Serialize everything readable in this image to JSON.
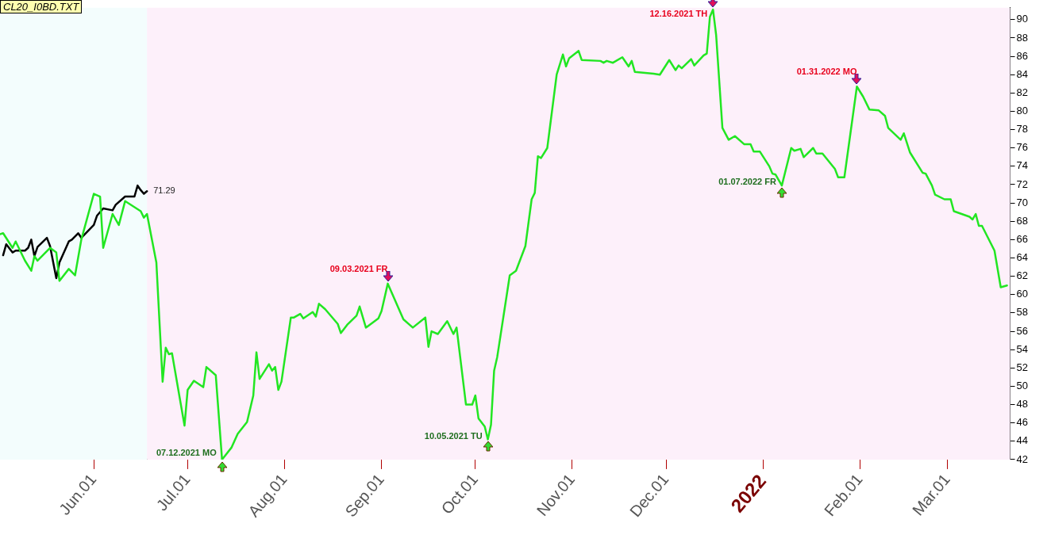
{
  "chart_data": {
    "type": "line",
    "title": "CL20_I0BD.TXT",
    "xlim": [
      "2021-05-02",
      "2022-03-21"
    ],
    "ylim": [
      42,
      91.3
    ],
    "xticks": [
      {
        "value": "2021-06-01",
        "label": "Jun.01"
      },
      {
        "value": "2021-07-01",
        "label": "Jul.01"
      },
      {
        "value": "2021-08-01",
        "label": "Aug.01"
      },
      {
        "value": "2021-09-01",
        "label": "Sep.01"
      },
      {
        "value": "2021-10-01",
        "label": "Oct.01"
      },
      {
        "value": "2021-11-01",
        "label": "Nov.01"
      },
      {
        "value": "2021-12-01",
        "label": "Dec.01"
      },
      {
        "value": "2022-01-01",
        "label": "2022"
      },
      {
        "value": "2022-02-01",
        "label": "Feb.01"
      },
      {
        "value": "2022-03-01",
        "label": "Mar.01"
      }
    ],
    "yticks": [
      42,
      44,
      46,
      48,
      50,
      52,
      54,
      56,
      58,
      60,
      62,
      64,
      66,
      68,
      70,
      72,
      74,
      76,
      78,
      80,
      82,
      84,
      86,
      88,
      90
    ],
    "legend": false,
    "marker": "none",
    "line_style": "solid",
    "bands": [
      {
        "axis": "x",
        "from": "2021-05-02",
        "to": "2021-06-18",
        "color": "#f3fdfd"
      },
      {
        "axis": "x",
        "from": "2021-06-18",
        "to": "2022-03-21",
        "color": "#fdf0fa"
      }
    ],
    "annotations": [
      {
        "text": "07.12.2021 MO",
        "x": "2021-07-12",
        "y": 42
      },
      {
        "text": "09.03.2021 FR",
        "x": "2021-09-03",
        "y": 61.2
      },
      {
        "text": "10.05.2021 TU",
        "x": "2021-10-05",
        "y": 44.2
      },
      {
        "text": "12.16.2021 TH",
        "x": "2021-12-16",
        "y": 91.1
      },
      {
        "text": "01.07.2022 FR",
        "x": "2022-01-07",
        "y": 71.9
      },
      {
        "text": "01.31.2022 MO",
        "x": "2022-01-31",
        "y": 82.7
      }
    ],
    "series": [
      {
        "color": "#22e622",
        "x": [
          "2021-05-02",
          "2021-05-03",
          "2021-05-06",
          "2021-05-07",
          "2021-05-10",
          "2021-05-12",
          "2021-05-13",
          "2021-05-14",
          "2021-05-18",
          "2021-05-20",
          "2021-05-21",
          "2021-05-24",
          "2021-05-26",
          "2021-05-28",
          "2021-06-01",
          "2021-06-03",
          "2021-06-04",
          "2021-06-07",
          "2021-06-09",
          "2021-06-11",
          "2021-06-16",
          "2021-06-17",
          "2021-06-18",
          "2021-06-21",
          "2021-06-22",
          "2021-06-23",
          "2021-06-24",
          "2021-06-25",
          "2021-06-26",
          "2021-06-30",
          "2021-07-01",
          "2021-07-03",
          "2021-07-06",
          "2021-07-07",
          "2021-07-10",
          "2021-07-12",
          "2021-07-15",
          "2021-07-17",
          "2021-07-20",
          "2021-07-22",
          "2021-07-23",
          "2021-07-24",
          "2021-07-27",
          "2021-07-28",
          "2021-07-29",
          "2021-07-30",
          "2021-07-31",
          "2021-08-03",
          "2021-08-04",
          "2021-08-06",
          "2021-08-07",
          "2021-08-10",
          "2021-08-11",
          "2021-08-12",
          "2021-08-14",
          "2021-08-18",
          "2021-08-19",
          "2021-08-21",
          "2021-08-24",
          "2021-08-25",
          "2021-08-27",
          "2021-08-31",
          "2021-09-01",
          "2021-09-03",
          "2021-09-08",
          "2021-09-11",
          "2021-09-15",
          "2021-09-16",
          "2021-09-17",
          "2021-09-19",
          "2021-09-22",
          "2021-09-24",
          "2021-09-25",
          "2021-09-28",
          "2021-09-30",
          "2021-10-01",
          "2021-10-02",
          "2021-10-04",
          "2021-10-05",
          "2021-10-06",
          "2021-10-07",
          "2021-10-08",
          "2021-10-12",
          "2021-10-14",
          "2021-10-17",
          "2021-10-19",
          "2021-10-20",
          "2021-10-21",
          "2021-10-22",
          "2021-10-24",
          "2021-10-27",
          "2021-10-29",
          "2021-10-30",
          "2021-10-31",
          "2021-11-03",
          "2021-11-04",
          "2021-11-10",
          "2021-11-11",
          "2021-11-12",
          "2021-11-14",
          "2021-11-17",
          "2021-11-19",
          "2021-11-20",
          "2021-11-21",
          "2021-11-27",
          "2021-11-29",
          "2021-12-02",
          "2021-12-04",
          "2021-12-05",
          "2021-12-06",
          "2021-12-09",
          "2021-12-10",
          "2021-12-13",
          "2021-12-14",
          "2021-12-15",
          "2021-12-16",
          "2021-12-17",
          "2021-12-19",
          "2021-12-21",
          "2021-12-23",
          "2021-12-26",
          "2021-12-28",
          "2021-12-29",
          "2021-12-31",
          "2022-01-03",
          "2022-01-04",
          "2022-01-05",
          "2022-01-07",
          "2022-01-10",
          "2022-01-11",
          "2022-01-13",
          "2022-01-14",
          "2022-01-17",
          "2022-01-18",
          "2022-01-20",
          "2022-01-24",
          "2022-01-25",
          "2022-01-27",
          "2022-01-31",
          "2022-02-02",
          "2022-02-04",
          "2022-02-07",
          "2022-02-09",
          "2022-02-10",
          "2022-02-14",
          "2022-02-15",
          "2022-02-17",
          "2022-02-21",
          "2022-02-22",
          "2022-02-24",
          "2022-02-25",
          "2022-02-28",
          "2022-03-02",
          "2022-03-03",
          "2022-03-08",
          "2022-03-09",
          "2022-03-10",
          "2022-03-11",
          "2022-03-12",
          "2022-03-16",
          "2022-03-18",
          "2022-03-20"
        ],
        "values": [
          66.6,
          66.7,
          65.1,
          65.8,
          63.7,
          62.6,
          64.2,
          63.7,
          65.1,
          64.6,
          61.5,
          62.8,
          62.1,
          66.0,
          71.0,
          70.7,
          65.1,
          68.8,
          67.6,
          70.2,
          69.1,
          68.4,
          68.8,
          63.5,
          57.0,
          50.5,
          54.2,
          53.5,
          53.6,
          45.7,
          49.6,
          50.6,
          49.9,
          52.1,
          51.2,
          42,
          43.3,
          44.8,
          46.1,
          49.0,
          53.7,
          50.8,
          52.4,
          51.7,
          52.1,
          49.6,
          50.5,
          57.5,
          57.5,
          57.9,
          57.4,
          58.1,
          57.6,
          59.0,
          58.4,
          56.8,
          55.8,
          56.7,
          57.7,
          58.7,
          56.4,
          57.4,
          58.2,
          61.2,
          57.3,
          56.4,
          57.5,
          54.3,
          56.0,
          55.7,
          57.1,
          55.7,
          56.4,
          48.0,
          48.0,
          49.0,
          46.5,
          45.6,
          44.2,
          45.8,
          51.7,
          53.2,
          62.1,
          62.6,
          65.3,
          70.4,
          71.1,
          75.1,
          74.9,
          76.0,
          84.0,
          86.2,
          84.9,
          85.8,
          86.6,
          85.6,
          85.5,
          85.3,
          85.5,
          85.3,
          85.9,
          84.9,
          85.5,
          84.3,
          84.1,
          84.0,
          85.6,
          84.5,
          85.0,
          84.7,
          85.7,
          85.0,
          86.1,
          86.3,
          90.3,
          91.1,
          88.3,
          78.2,
          76.9,
          77.3,
          76.4,
          76.4,
          75.6,
          75.6,
          74.0,
          73.2,
          73.1,
          71.9,
          76.0,
          75.7,
          75.9,
          75.0,
          76.0,
          75.4,
          75.4,
          73.7,
          72.8,
          72.8,
          82.7,
          81.6,
          80.2,
          80.1,
          79.5,
          78.2,
          76.9,
          77.6,
          75.5,
          73.3,
          73.2,
          71.9,
          70.9,
          70.4,
          70.4,
          69.1,
          68.5,
          68.2,
          68.8,
          67.5,
          67.5,
          64.8,
          60.8,
          61.0
        ]
      },
      {
        "color": "#000000",
        "x": [
          "2021-05-03",
          "2021-05-04",
          "2021-05-06",
          "2021-05-07",
          "2021-05-10",
          "2021-05-11",
          "2021-05-12",
          "2021-05-13",
          "2021-05-14",
          "2021-05-17",
          "2021-05-18",
          "2021-05-20",
          "2021-05-21",
          "2021-05-24",
          "2021-05-25",
          "2021-05-27",
          "2021-05-28",
          "2021-06-01",
          "2021-06-02",
          "2021-06-04",
          "2021-06-07",
          "2021-06-08",
          "2021-06-11",
          "2021-06-14",
          "2021-06-15",
          "2021-06-16",
          "2021-06-17",
          "2021-06-18"
        ],
        "values": [
          64.3,
          65.5,
          64.6,
          64.8,
          64.8,
          65.1,
          66.0,
          64.2,
          65.2,
          66.2,
          65.3,
          61.8,
          63.5,
          65.8,
          66.0,
          66.7,
          66.2,
          67.6,
          68.6,
          69.4,
          69.2,
          69.8,
          70.7,
          70.7,
          71.9,
          71.4,
          71.0,
          71.29
        ],
        "value_labels": [
          null,
          null,
          null,
          null,
          null,
          null,
          null,
          null,
          null,
          null,
          null,
          null,
          null,
          null,
          null,
          null,
          null,
          null,
          null,
          null,
          null,
          null,
          null,
          null,
          null,
          null,
          null,
          "71.29"
        ]
      }
    ]
  }
}
